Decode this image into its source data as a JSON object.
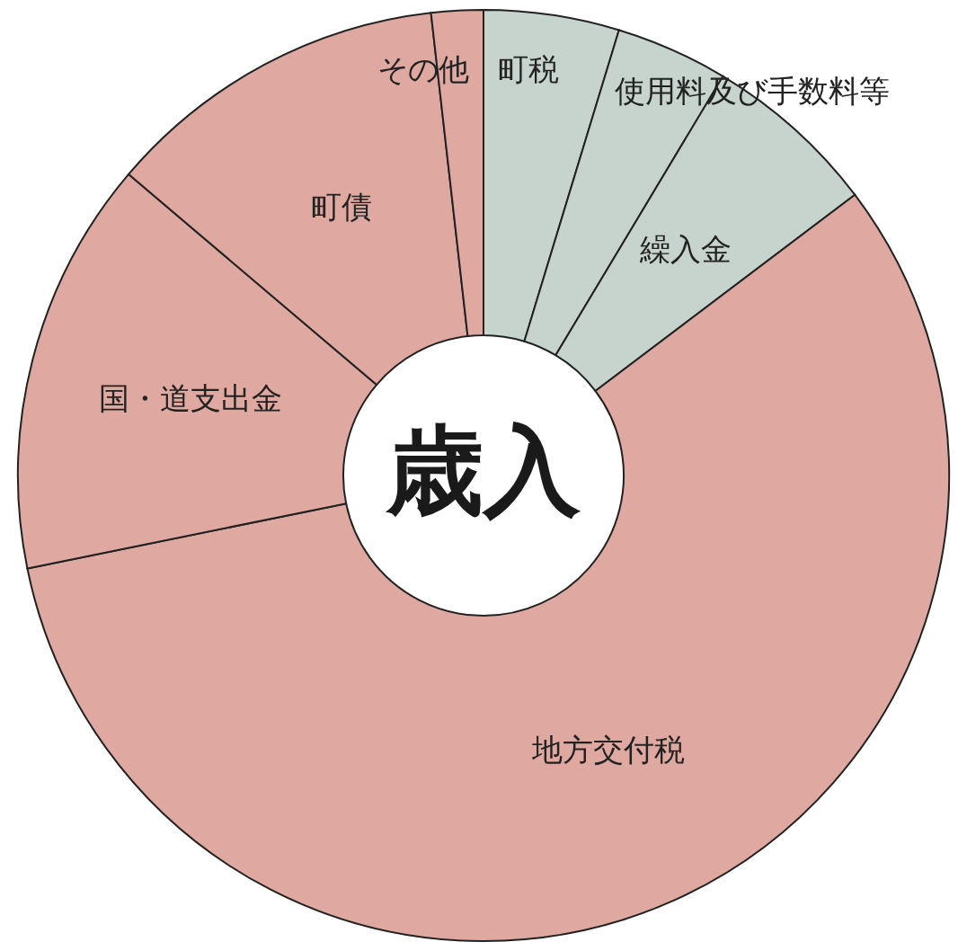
{
  "chart_data": {
    "type": "donut",
    "title": "歳入",
    "categories": [
      "町税",
      "使用料及び手数料等",
      "繰入金",
      "地方交付税",
      "国・道支出金",
      "町債",
      "その他"
    ],
    "values": [
      4.7,
      3.9,
      6.1,
      57.1,
      14.4,
      12.0,
      1.8
    ],
    "colors": [
      "#c6d4cd",
      "#c6d4cd",
      "#c6d4cd",
      "#dfa8a0",
      "#dfa8a0",
      "#dfa8a0",
      "#dfa8a0"
    ]
  }
}
